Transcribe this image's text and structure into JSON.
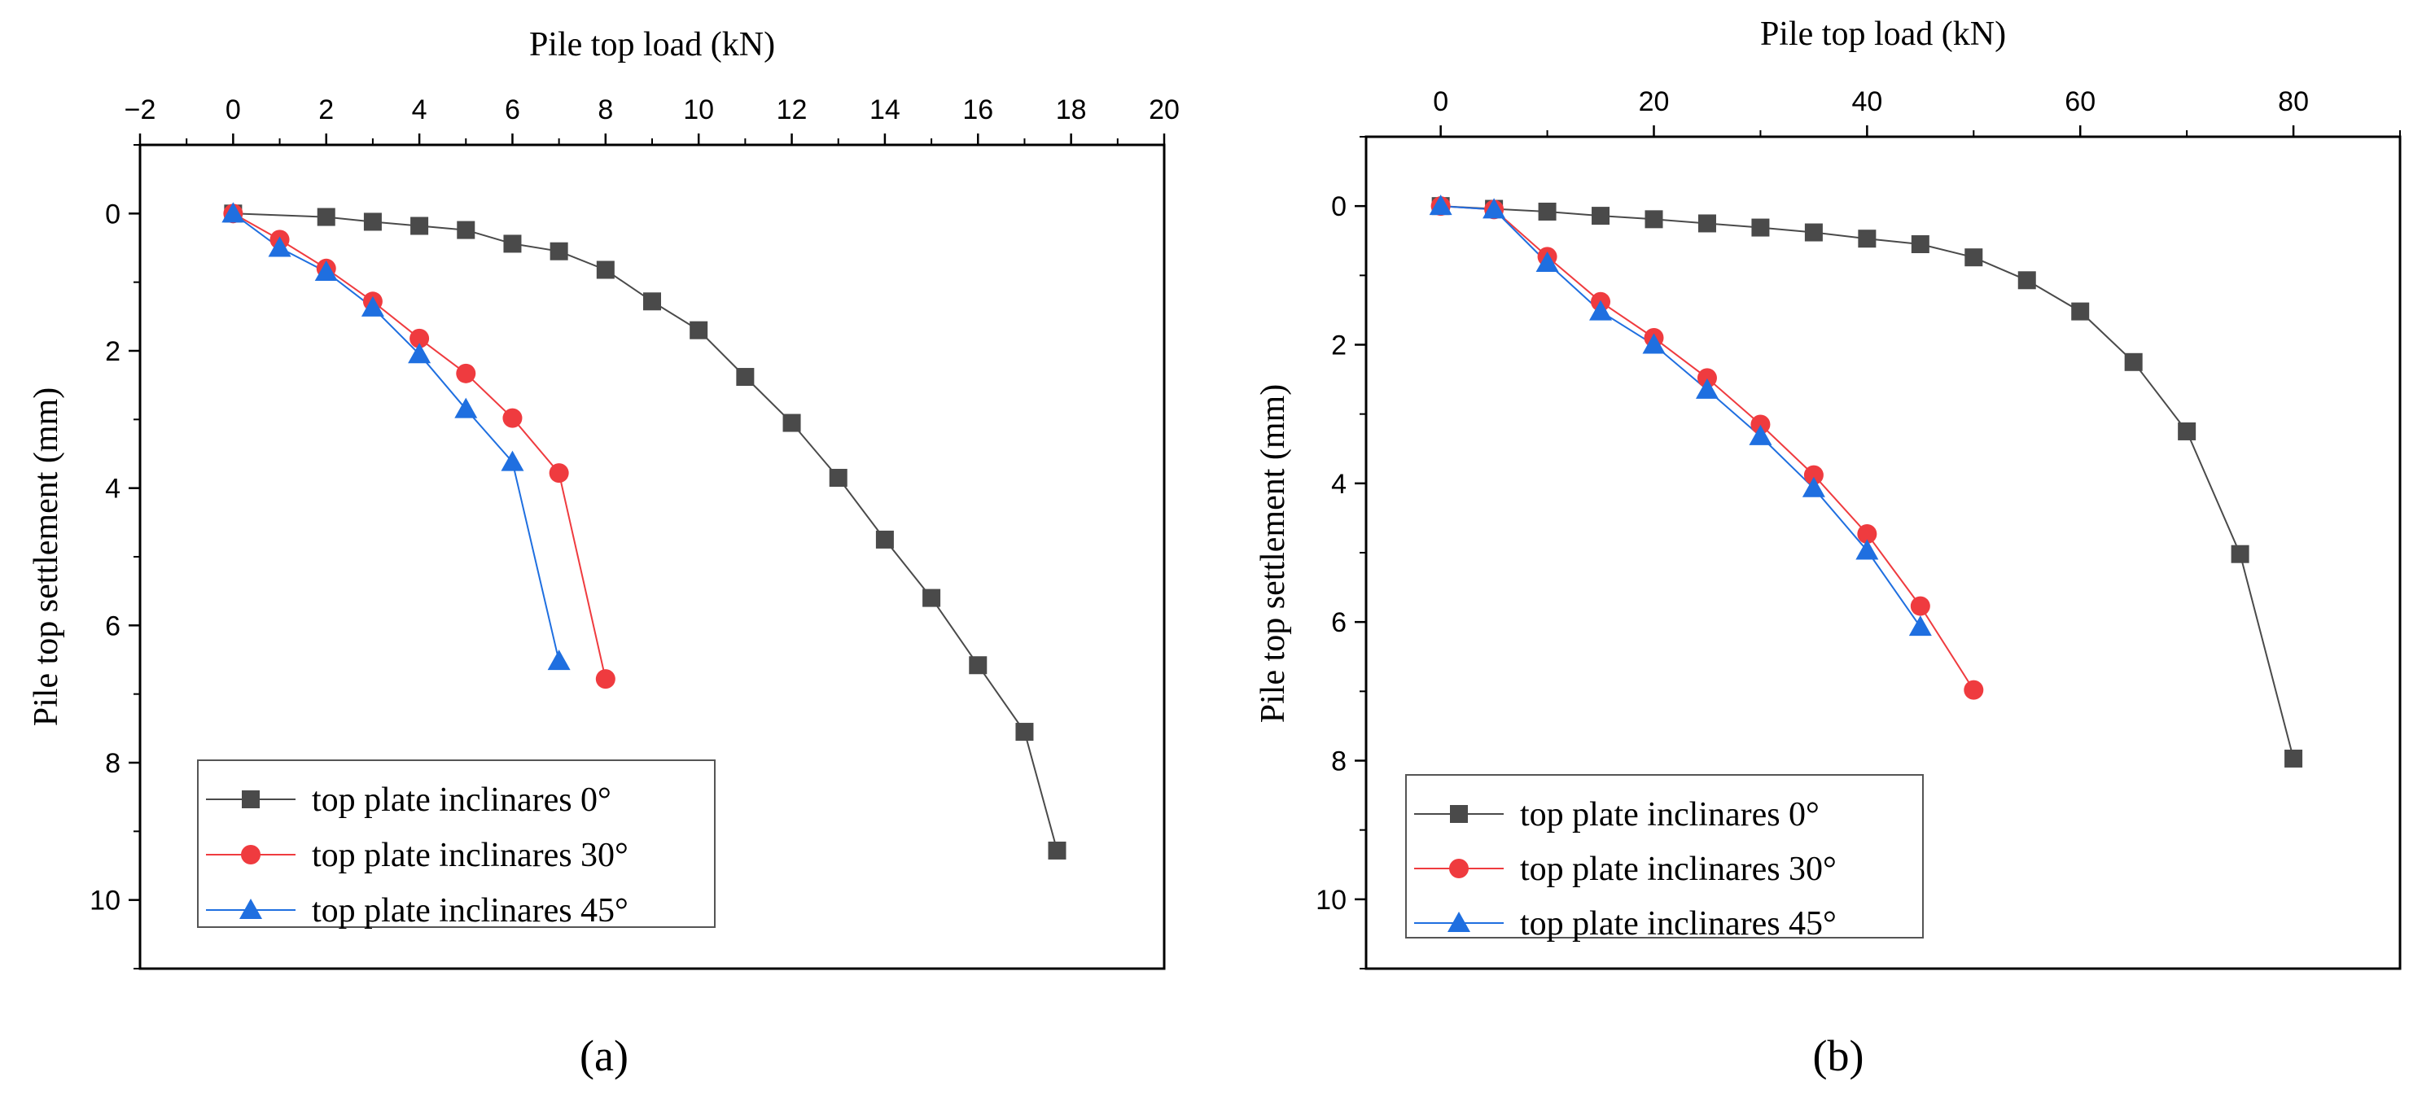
{
  "figure": {
    "panel_labels": [
      "(a)",
      "(b)"
    ]
  },
  "colors": {
    "s0": "#4a4a4a",
    "s30": "#ef3b3f",
    "s45": "#1f6fe0",
    "axis": "#000000"
  },
  "chart_data": [
    {
      "type": "line",
      "panel": "(a)",
      "xlabel": "Pile top load (kN)",
      "ylabel": "Pile top settlement (mm)",
      "xlim": [
        -2,
        20
      ],
      "ylim": [
        11,
        -1
      ],
      "x_ticks": [
        -2,
        0,
        2,
        4,
        6,
        8,
        10,
        12,
        14,
        16,
        18,
        20
      ],
      "y_ticks": [
        0,
        2,
        4,
        6,
        8,
        10
      ],
      "legend_position": "bottom-left",
      "series": [
        {
          "name": "top plate inclinares 0°",
          "marker": "square",
          "color": "#4a4a4a",
          "x": [
            0,
            2,
            3,
            4,
            5,
            6,
            7,
            8,
            9,
            10,
            11,
            12,
            13,
            14,
            15,
            16,
            17,
            17.7
          ],
          "y": [
            0,
            0.05,
            0.12,
            0.18,
            0.24,
            0.44,
            0.55,
            0.82,
            1.28,
            1.7,
            2.38,
            3.05,
            3.85,
            4.75,
            5.6,
            6.58,
            7.55,
            9.28
          ]
        },
        {
          "name": "top plate inclinares 30°",
          "marker": "circle",
          "color": "#ef3b3f",
          "x": [
            0,
            1,
            2,
            3,
            4,
            5,
            6,
            7,
            8
          ],
          "y": [
            0,
            0.38,
            0.8,
            1.28,
            1.82,
            2.33,
            2.98,
            3.78,
            6.78
          ]
        },
        {
          "name": "top plate inclinares 45°",
          "marker": "triangle",
          "color": "#1f6fe0",
          "x": [
            0,
            1,
            2,
            3,
            4,
            5,
            6,
            7
          ],
          "y": [
            0,
            0.5,
            0.85,
            1.37,
            2.05,
            2.85,
            3.62,
            6.52
          ]
        }
      ]
    },
    {
      "type": "line",
      "panel": "(b)",
      "xlabel": "Pile top load (kN)",
      "ylabel": "Pile top settlement (mm)",
      "xlim": [
        -7,
        90
      ],
      "ylim": [
        11,
        -1
      ],
      "x_ticks": [
        0,
        20,
        40,
        60,
        80
      ],
      "y_ticks": [
        0,
        2,
        4,
        6,
        8,
        10
      ],
      "legend_position": "bottom-left",
      "series": [
        {
          "name": "top plate inclinares 0°",
          "marker": "square",
          "color": "#4a4a4a",
          "x": [
            0,
            5,
            10,
            15,
            20,
            25,
            30,
            35,
            40,
            45,
            50,
            55,
            60,
            65,
            70,
            75,
            80
          ],
          "y": [
            0,
            0.04,
            0.08,
            0.14,
            0.19,
            0.25,
            0.31,
            0.38,
            0.47,
            0.55,
            0.74,
            1.07,
            1.52,
            2.25,
            3.25,
            5.02,
            7.97
          ]
        },
        {
          "name": "top plate inclinares 30°",
          "marker": "circle",
          "color": "#ef3b3f",
          "x": [
            0,
            5,
            10,
            15,
            20,
            25,
            30,
            35,
            40,
            45,
            50
          ],
          "y": [
            0,
            0.05,
            0.73,
            1.38,
            1.9,
            2.48,
            3.15,
            3.88,
            4.73,
            5.77,
            6.98
          ]
        },
        {
          "name": "top plate inclinares 45°",
          "marker": "triangle",
          "color": "#1f6fe0",
          "x": [
            0,
            5,
            10,
            15,
            20,
            25,
            30,
            35,
            40,
            45
          ],
          "y": [
            0,
            0.05,
            0.82,
            1.52,
            2.0,
            2.65,
            3.32,
            4.07,
            4.97,
            6.07
          ]
        }
      ]
    }
  ]
}
